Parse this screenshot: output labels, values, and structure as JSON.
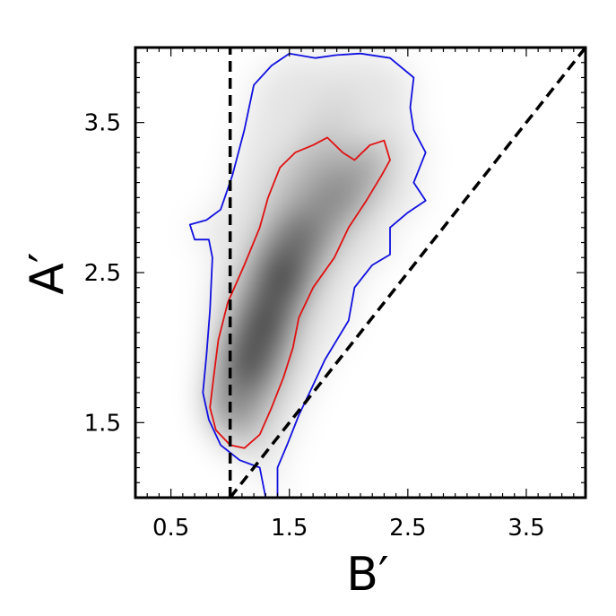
{
  "chart_data": {
    "type": "heatmap",
    "title": "",
    "xlabel": "B′",
    "ylabel": "A′",
    "xlim": [
      0.2,
      4.0
    ],
    "ylim": [
      1.0,
      4.0
    ],
    "x_ticks": [
      0.5,
      1.5,
      2.5,
      3.5
    ],
    "y_ticks": [
      1.5,
      2.5,
      3.5
    ],
    "x_tick_labels": [
      "0.5",
      "1.5",
      "2.5",
      "3.5"
    ],
    "y_tick_labels": [
      "1.5",
      "2.5",
      "3.5"
    ],
    "grid": false,
    "colormap": "greys",
    "density_peaks": [
      {
        "x": 1.22,
        "y": 2.02,
        "weight": 1.0
      },
      {
        "x": 1.38,
        "y": 2.35,
        "weight": 0.9
      },
      {
        "x": 1.5,
        "y": 2.62,
        "weight": 0.75
      },
      {
        "x": 1.08,
        "y": 1.72,
        "weight": 0.55
      },
      {
        "x": 1.75,
        "y": 2.9,
        "weight": 0.4
      },
      {
        "x": 2.05,
        "y": 3.1,
        "weight": 0.3
      },
      {
        "x": 1.85,
        "y": 3.45,
        "weight": 0.15
      }
    ],
    "reference_lines": [
      {
        "name": "vertical-dashed",
        "x": [
          1.0,
          1.0
        ],
        "y": [
          1.0,
          4.0
        ],
        "color": "#000000",
        "style": "dashed"
      },
      {
        "name": "diagonal-dashed",
        "x": [
          1.0,
          4.0
        ],
        "y": [
          1.0,
          4.0
        ],
        "color": "#000000",
        "style": "dashed"
      }
    ],
    "contours": [
      {
        "level": "outer",
        "color": "#1010e0",
        "points": [
          [
            1.3,
            1.0
          ],
          [
            1.25,
            1.2
          ],
          [
            1.08,
            1.25
          ],
          [
            0.92,
            1.35
          ],
          [
            0.82,
            1.52
          ],
          [
            0.77,
            1.7
          ],
          [
            0.8,
            1.95
          ],
          [
            0.83,
            2.25
          ],
          [
            0.85,
            2.6
          ],
          [
            0.82,
            2.72
          ],
          [
            0.7,
            2.72
          ],
          [
            0.66,
            2.82
          ],
          [
            0.8,
            2.85
          ],
          [
            0.92,
            2.92
          ],
          [
            1.02,
            3.15
          ],
          [
            1.12,
            3.45
          ],
          [
            1.2,
            3.75
          ],
          [
            1.35,
            3.88
          ],
          [
            1.5,
            3.96
          ],
          [
            1.72,
            3.93
          ],
          [
            1.9,
            3.95
          ],
          [
            2.1,
            3.96
          ],
          [
            2.35,
            3.93
          ],
          [
            2.55,
            3.8
          ],
          [
            2.52,
            3.6
          ],
          [
            2.55,
            3.45
          ],
          [
            2.65,
            3.3
          ],
          [
            2.55,
            3.1
          ],
          [
            2.65,
            2.98
          ],
          [
            2.5,
            2.9
          ],
          [
            2.35,
            2.8
          ],
          [
            2.35,
            2.62
          ],
          [
            2.2,
            2.55
          ],
          [
            2.05,
            2.4
          ],
          [
            2.0,
            2.18
          ],
          [
            1.8,
            1.92
          ],
          [
            1.7,
            1.75
          ],
          [
            1.58,
            1.55
          ],
          [
            1.48,
            1.35
          ],
          [
            1.4,
            1.2
          ],
          [
            1.4,
            1.0
          ]
        ]
      },
      {
        "level": "inner",
        "color": "#e01010",
        "points": [
          [
            1.0,
            1.35
          ],
          [
            1.12,
            1.33
          ],
          [
            1.25,
            1.42
          ],
          [
            1.35,
            1.6
          ],
          [
            1.45,
            1.8
          ],
          [
            1.53,
            2.0
          ],
          [
            1.58,
            2.2
          ],
          [
            1.7,
            2.4
          ],
          [
            1.88,
            2.6
          ],
          [
            2.0,
            2.8
          ],
          [
            2.15,
            2.98
          ],
          [
            2.28,
            3.15
          ],
          [
            2.35,
            3.25
          ],
          [
            2.3,
            3.38
          ],
          [
            2.18,
            3.35
          ],
          [
            2.05,
            3.25
          ],
          [
            1.95,
            3.3
          ],
          [
            1.82,
            3.4
          ],
          [
            1.7,
            3.35
          ],
          [
            1.55,
            3.3
          ],
          [
            1.42,
            3.2
          ],
          [
            1.32,
            3.0
          ],
          [
            1.25,
            2.8
          ],
          [
            1.12,
            2.55
          ],
          [
            0.98,
            2.3
          ],
          [
            0.9,
            2.05
          ],
          [
            0.86,
            1.8
          ],
          [
            0.83,
            1.6
          ],
          [
            0.88,
            1.45
          ]
        ]
      }
    ]
  }
}
